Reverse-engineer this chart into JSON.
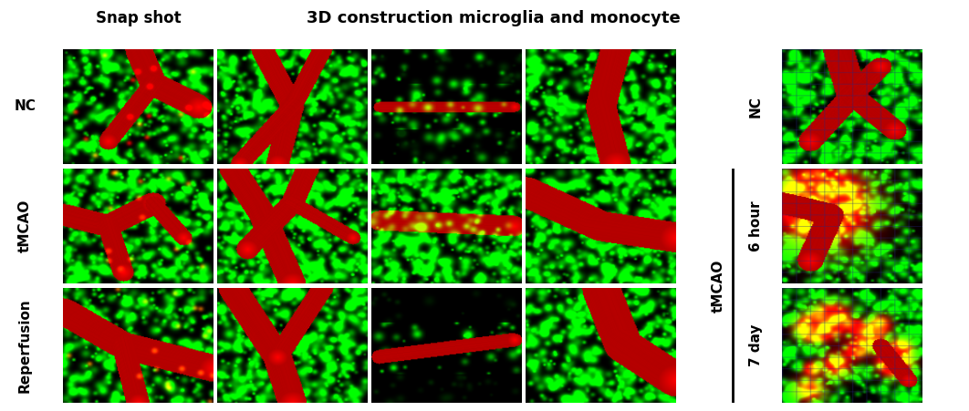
{
  "title_left": "Snap shot",
  "title_center": "3D construction microglia and monocyte",
  "row_labels_left": [
    "NC",
    "tMCAO",
    "Reperfusion"
  ],
  "row_labels_right": [
    "NC",
    "6 hour",
    "7 day"
  ],
  "col_label_right": "tMCAO",
  "bg_color": "#ffffff",
  "figure_width": 10.62,
  "figure_height": 4.51,
  "dpi": 100,
  "title_fontsize": 13,
  "snap_title_fontsize": 12,
  "label_fontsize": 11
}
